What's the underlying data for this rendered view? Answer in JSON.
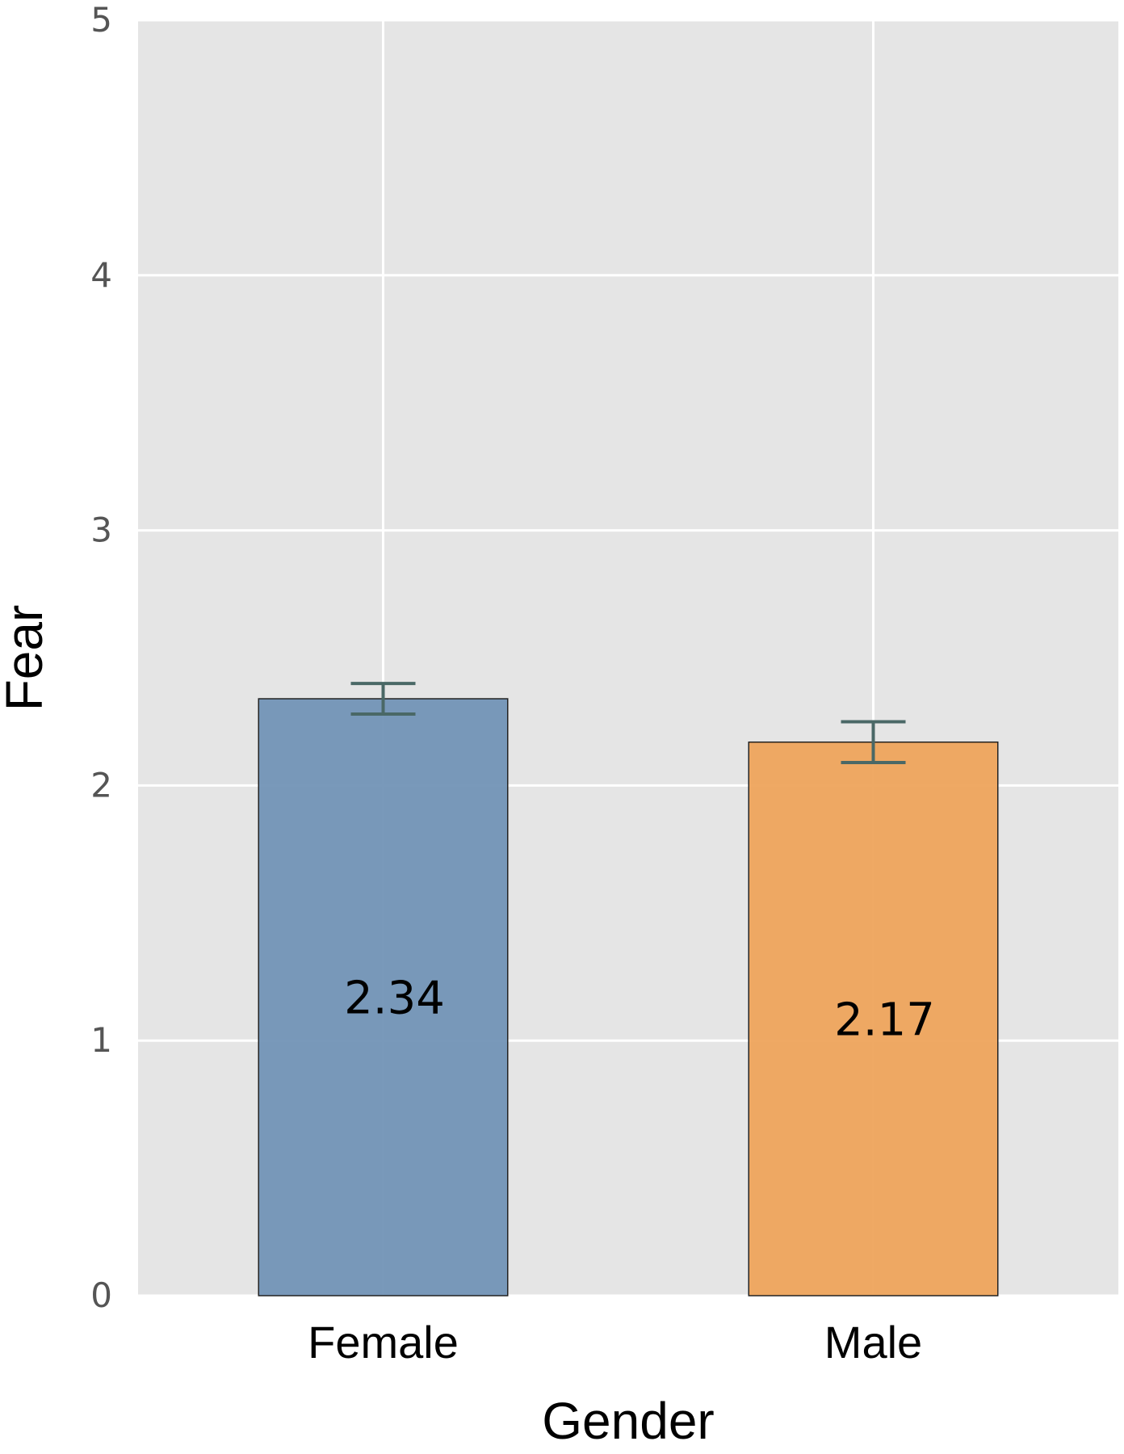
{
  "chart_data": {
    "type": "bar",
    "categories": [
      "Female",
      "Male"
    ],
    "values": [
      2.34,
      2.17
    ],
    "error_bars": [
      {
        "low": 2.28,
        "high": 2.4
      },
      {
        "low": 2.09,
        "high": 2.25
      }
    ],
    "value_labels": [
      "2.34",
      "2.17"
    ],
    "xlabel": "Gender",
    "ylabel": "Fear",
    "ylim": [
      0,
      5
    ],
    "yticks": [
      0,
      1,
      2,
      3,
      4,
      5
    ],
    "grid": true,
    "colors": {
      "plot_background": "#e5e5e5",
      "grid": "#ffffff",
      "bars": [
        "#7293b6",
        "#eea45c"
      ],
      "bar_edge": "#222222",
      "error_bar": "#4a6866"
    }
  }
}
